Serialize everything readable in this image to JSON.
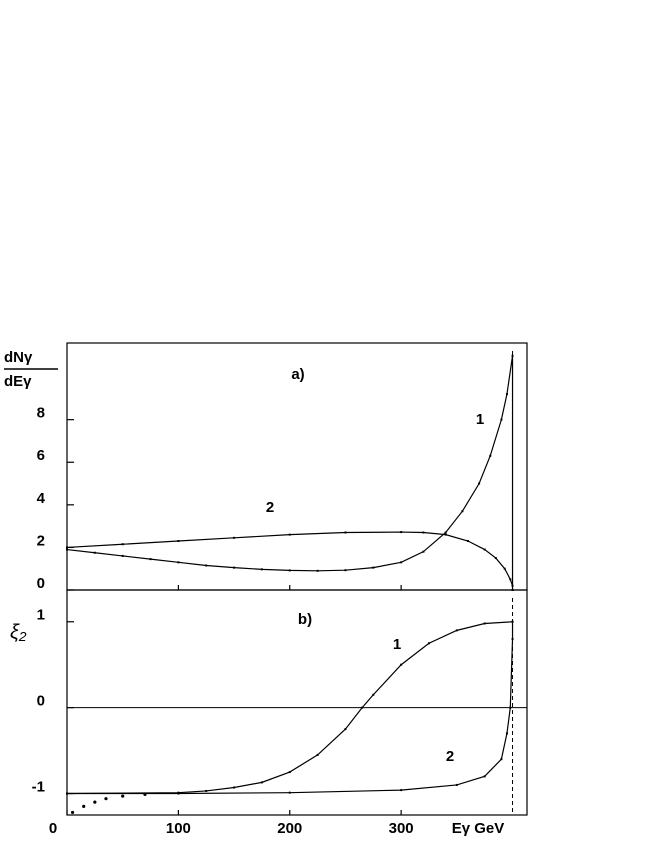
{
  "chart_data": [
    {
      "type": "line",
      "annotation": "a)",
      "ylabel": [
        "dNγ",
        "dEγ"
      ],
      "xlim": [
        0,
        413
      ],
      "ylim": [
        0,
        11.6
      ],
      "yticks": [
        0,
        2,
        4,
        6,
        8
      ],
      "xticks": [
        100,
        200,
        300
      ],
      "vline": 400,
      "vline_style": "solid",
      "series": [
        {
          "name": "1",
          "color": "#000",
          "x": [
            0,
            25,
            50,
            75,
            100,
            125,
            150,
            175,
            200,
            225,
            250,
            275,
            300,
            320,
            340,
            355,
            370,
            380,
            390,
            395,
            400,
            400
          ],
          "values": [
            1.9,
            1.75,
            1.6,
            1.45,
            1.3,
            1.15,
            1.05,
            0.97,
            0.92,
            0.9,
            0.93,
            1.05,
            1.3,
            1.8,
            2.7,
            3.7,
            5.0,
            6.3,
            8.0,
            9.2,
            11.0,
            0
          ]
        },
        {
          "name": "2",
          "color": "#000",
          "x": [
            0,
            50,
            100,
            150,
            200,
            250,
            300,
            320,
            340,
            360,
            375,
            385,
            393,
            398,
            400
          ],
          "values": [
            2.0,
            2.15,
            2.3,
            2.45,
            2.6,
            2.7,
            2.72,
            2.7,
            2.6,
            2.3,
            1.9,
            1.5,
            1.0,
            0.5,
            0.2
          ]
        }
      ]
    },
    {
      "type": "line",
      "annotation": "b)",
      "ylabel": "ξ₂",
      "xlabel": "Eγ GeV",
      "xlim": [
        0,
        413
      ],
      "ylim": [
        -1.25,
        1.37
      ],
      "yticks": [
        -1,
        0,
        1
      ],
      "xticks": [
        0,
        100,
        200,
        300
      ],
      "hline": 0,
      "vline": 400,
      "vline_style": "dashed",
      "series": [
        {
          "name": "1",
          "color": "#000",
          "x": [
            0,
            100,
            125,
            150,
            175,
            200,
            225,
            250,
            265,
            275,
            300,
            325,
            350,
            375,
            400
          ],
          "values": [
            -1,
            -0.99,
            -0.97,
            -0.93,
            -0.87,
            -0.75,
            -0.55,
            -0.25,
            0,
            0.15,
            0.5,
            0.75,
            0.9,
            0.98,
            1.0
          ]
        },
        {
          "name": "2",
          "color": "#000",
          "x": [
            0,
            100,
            200,
            300,
            350,
            375,
            390,
            395,
            398,
            400,
            400
          ],
          "values": [
            -1,
            -1,
            -0.99,
            -0.96,
            -0.9,
            -0.8,
            -0.6,
            -0.3,
            0,
            0.8,
            1.0
          ]
        },
        {
          "color": "#000",
          "style": "dots",
          "x": [
            5,
            15,
            25,
            35,
            50,
            70
          ],
          "values": [
            -1.22,
            -1.15,
            -1.1,
            -1.06,
            -1.03,
            -1.01
          ]
        }
      ]
    }
  ]
}
